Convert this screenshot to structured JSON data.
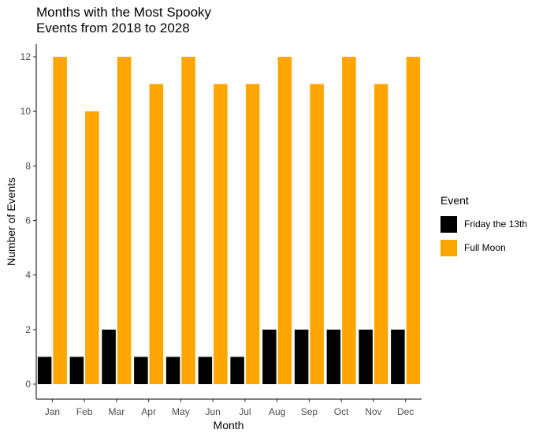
{
  "chart_data": {
    "type": "bar",
    "title_lines": [
      "Months with the Most Spooky",
      "Events from 2018 to 2028"
    ],
    "xlabel": "Month",
    "ylabel": "Number of Events",
    "categories": [
      "Jan",
      "Feb",
      "Mar",
      "Apr",
      "May",
      "Jun",
      "Jul",
      "Aug",
      "Sep",
      "Oct",
      "Nov",
      "Dec"
    ],
    "ylim": [
      0,
      12
    ],
    "yticks": [
      0,
      2,
      4,
      6,
      8,
      10,
      12
    ],
    "grid": false,
    "legend": {
      "title": "Event",
      "placement": "right"
    },
    "series": [
      {
        "name": "Friday the 13th",
        "color": "#000000",
        "values": [
          1,
          1,
          2,
          1,
          1,
          1,
          1,
          2,
          2,
          2,
          2,
          2
        ]
      },
      {
        "name": "Full Moon",
        "color": "#FFA500",
        "values": [
          12,
          10,
          12,
          11,
          12,
          11,
          11,
          12,
          11,
          12,
          11,
          12
        ]
      }
    ]
  }
}
